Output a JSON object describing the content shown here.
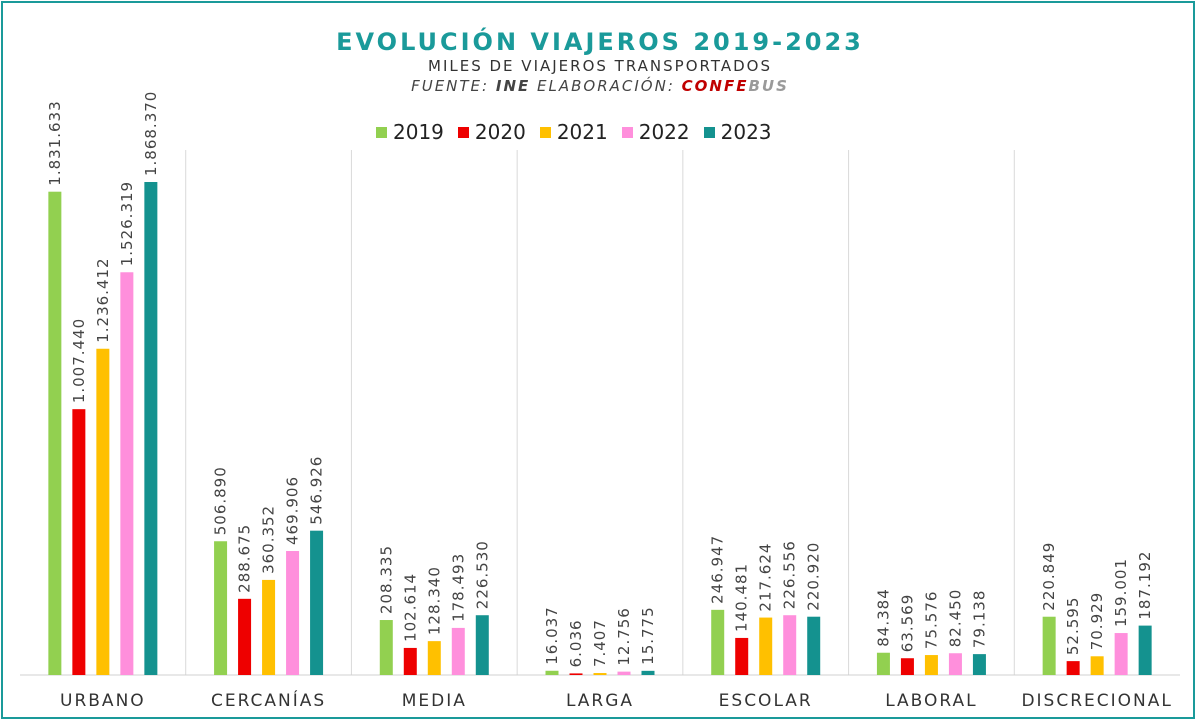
{
  "title": "EVOLUCIÓN VIAJEROS 2019-2023",
  "subtitle": "MILES DE VIAJEROS TRANSPORTADOS",
  "source": {
    "prefix": "FUENTE: ",
    "ine": "INE",
    "middle": " ELABORACIÓN: ",
    "conf": "CONFE",
    "bus": "BUS"
  },
  "colors": {
    "frame": "#1a9a9a",
    "title": "#1a9a9a",
    "conf": "#c00000",
    "bus": "#9a9a9a"
  },
  "chart_data": {
    "type": "bar",
    "title": "EVOLUCIÓN VIAJEROS 2019-2023",
    "subtitle": "MILES DE VIAJEROS TRANSPORTADOS",
    "categories": [
      "URBANO",
      "CERCANÍAS",
      "MEDIA",
      "LARGA",
      "ESCOLAR",
      "LABORAL",
      "DISCRECIONAL"
    ],
    "series": [
      {
        "name": "2019",
        "color": "#92d050",
        "values": [
          1831633,
          506890,
          208335,
          16037,
          246947,
          84384,
          220849
        ],
        "labels": [
          "1.831.633",
          "506.890",
          "208.335",
          "16.037",
          "246.947",
          "84.384",
          "220.849"
        ]
      },
      {
        "name": "2020",
        "color": "#ee0000",
        "values": [
          1007440,
          288675,
          102614,
          6036,
          140481,
          63569,
          52595
        ],
        "labels": [
          "1.007.440",
          "288.675",
          "102.614",
          "6.036",
          "140.481",
          "63.569",
          "52.595"
        ]
      },
      {
        "name": "2021",
        "color": "#ffc000",
        "values": [
          1236412,
          360352,
          128340,
          7407,
          217624,
          75576,
          70929
        ],
        "labels": [
          "1.236.412",
          "360.352",
          "128.340",
          "7.407",
          "217.624",
          "75.576",
          "70.929"
        ]
      },
      {
        "name": "2022",
        "color": "#ff8fdc",
        "values": [
          1526319,
          469906,
          178493,
          12756,
          226556,
          82450,
          159001
        ],
        "labels": [
          "1.526.319",
          "469.906",
          "178.493",
          "12.756",
          "226.556",
          "82.450",
          "159.001"
        ]
      },
      {
        "name": "2023",
        "color": "#14928f",
        "values": [
          1868370,
          546926,
          226530,
          15775,
          220920,
          79138,
          187192
        ],
        "labels": [
          "1.868.370",
          "546.926",
          "226.530",
          "15.775",
          "220.920",
          "79.138",
          "187.192"
        ]
      }
    ],
    "ylim": [
      0,
      1900000
    ],
    "legend_position": "top-center",
    "grid": "vertical category separators"
  }
}
